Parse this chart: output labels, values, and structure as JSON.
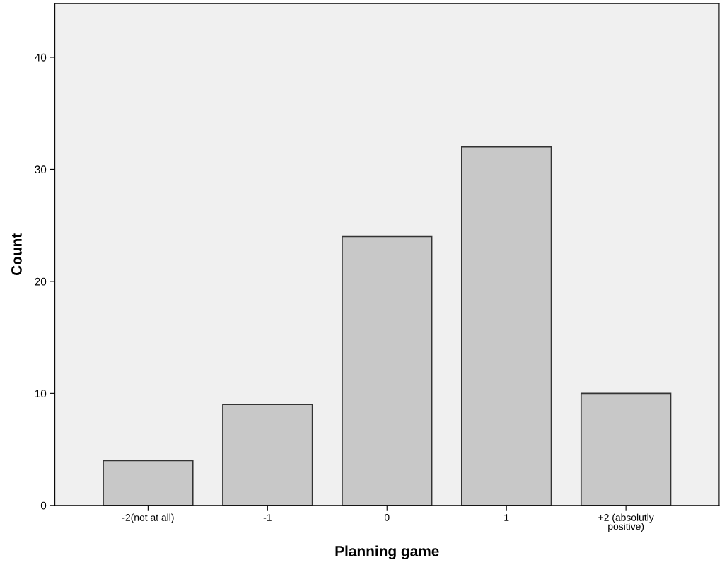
{
  "chart_data": {
    "type": "bar",
    "xlabel": "Planning game",
    "ylabel": "Count",
    "categories": [
      "-2(not at all)",
      "-1",
      "0",
      "1",
      "+2 (absolutly positive)"
    ],
    "values": [
      4,
      9,
      24,
      32,
      10
    ],
    "color": "#c8c8c8",
    "ylim": [
      0,
      44.8
    ],
    "yticks": [
      0,
      10,
      20,
      30,
      40
    ],
    "grid": false,
    "legend": false
  }
}
